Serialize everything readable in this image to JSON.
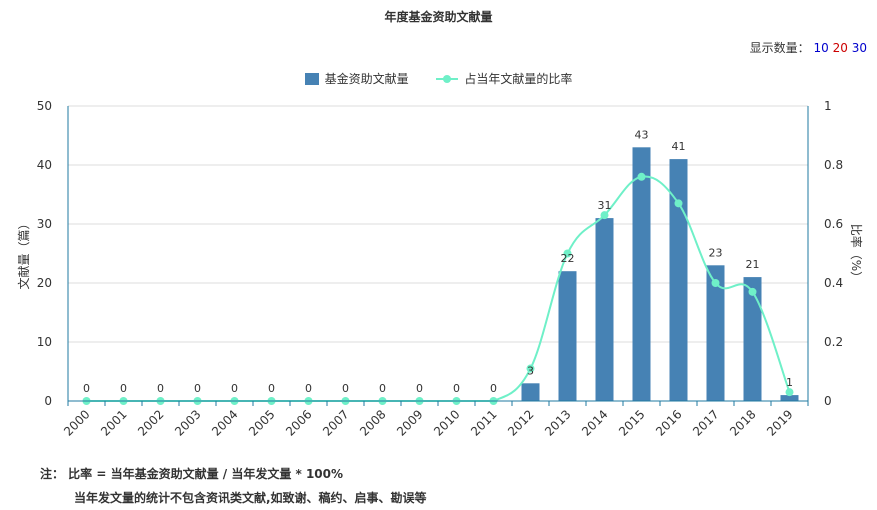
{
  "title": "年度基金资助文献量",
  "count_selector": {
    "label": "显示数量：",
    "options": [
      {
        "label": "10",
        "color": "#0000cc"
      },
      {
        "label": "20",
        "color": "#cc0000"
      },
      {
        "label": "30",
        "color": "#0000cc"
      }
    ]
  },
  "legend": {
    "bar": "基金资助文献量",
    "line": "占当年文献量的比率"
  },
  "note": {
    "line1": "注： 比率 = 当年基金资助文献量 / 当年发文量 * 100%",
    "line2": "当年发文量的统计不包含资讯类文献,如致谢、稿约、启事、勘误等"
  },
  "chart_data": {
    "type": "bar",
    "categories": [
      "2000",
      "2001",
      "2002",
      "2003",
      "2004",
      "2005",
      "2006",
      "2007",
      "2008",
      "2009",
      "2010",
      "2011",
      "2012",
      "2013",
      "2014",
      "2015",
      "2016",
      "2017",
      "2018",
      "2019"
    ],
    "series": [
      {
        "name": "基金资助文献量",
        "type": "bar",
        "axis": "left",
        "values": [
          0,
          0,
          0,
          0,
          0,
          0,
          0,
          0,
          0,
          0,
          0,
          0,
          3,
          22,
          31,
          43,
          41,
          23,
          21,
          1
        ],
        "color": "#4682b4"
      },
      {
        "name": "占当年文献量的比率",
        "type": "line",
        "axis": "right",
        "values": [
          0,
          0,
          0,
          0,
          0,
          0,
          0,
          0,
          0,
          0,
          0,
          0,
          0.11,
          0.5,
          0.63,
          0.76,
          0.67,
          0.4,
          0.37,
          0.03
        ],
        "color": "#6ff0c8"
      }
    ],
    "ylabel": "文献量（篇）",
    "y2label": "比率（%）",
    "ylim": [
      0,
      50
    ],
    "y2lim": [
      0,
      1
    ],
    "yticks": [
      0,
      10,
      20,
      30,
      40,
      50
    ],
    "y2ticks": [
      "0",
      "0.2",
      "0.4",
      "0.6",
      "0.8",
      "1"
    ],
    "grid": true
  }
}
